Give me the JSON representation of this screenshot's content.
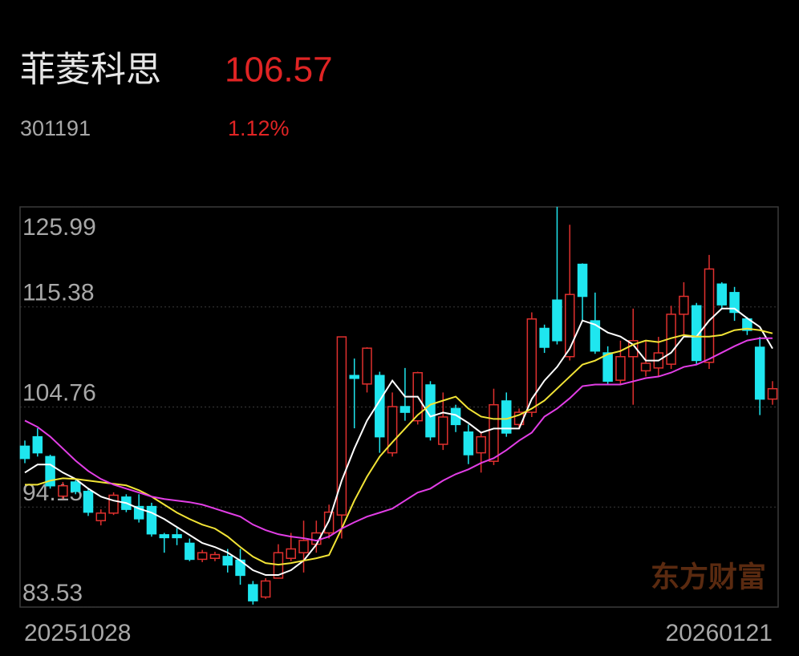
{
  "quote": {
    "name": "菲菱科思",
    "price": 106.57,
    "code": "301191",
    "change": "1.12%"
  },
  "chart_data": {
    "type": "candlestick",
    "watermark": "东方财富",
    "categories": [
      "20251028",
      null,
      null,
      null,
      null,
      null,
      null,
      null,
      null,
      null,
      null,
      null,
      null,
      null,
      null,
      null,
      null,
      null,
      null,
      null,
      null,
      null,
      null,
      null,
      null,
      null,
      null,
      null,
      null,
      null,
      null,
      null,
      null,
      null,
      null,
      null,
      null,
      null,
      null,
      null,
      null,
      null,
      null,
      null,
      null,
      null,
      null,
      null,
      null,
      null,
      null,
      null,
      null,
      null,
      null,
      null,
      null,
      null,
      null,
      "20260121"
    ],
    "open": [
      100.6,
      101.6,
      99.5,
      95.3,
      96.8,
      95.8,
      92.7,
      93.5,
      95.2,
      94.2,
      94.2,
      91.2,
      91.2,
      90.3,
      88.6,
      88.7,
      88.9,
      88.5,
      85.9,
      84.6,
      86.6,
      88.7,
      89.3,
      90.2,
      91.4,
      93.3,
      108.1,
      107.2,
      108.1,
      99.9,
      104.8,
      103.3,
      107.1,
      100.8,
      104.6,
      102.1,
      99.9,
      99.0,
      105.4,
      102.9,
      104.2,
      113.1,
      116.1,
      110.1,
      119.9,
      113.9,
      110.5,
      107.6,
      110.1,
      108.6,
      108.9,
      109.3,
      114.6,
      115.5,
      109.5,
      117.8,
      116.9,
      114.1,
      111.1,
      105.6
    ],
    "high": [
      101.2,
      102.5,
      99.7,
      96.8,
      97.0,
      96.1,
      93.9,
      95.7,
      95.5,
      95.5,
      94.6,
      91.4,
      91.9,
      90.8,
      89.6,
      89.4,
      89.7,
      89.7,
      86.3,
      86.6,
      90.2,
      91.4,
      92.7,
      92.7,
      94.4,
      112.2,
      109.9,
      111.1,
      108.5,
      106.3,
      108.9,
      108.5,
      107.5,
      106.3,
      105.0,
      102.9,
      102.0,
      106.7,
      106.3,
      104.6,
      114.8,
      113.5,
      126.0,
      124.1,
      120.0,
      116.9,
      111.2,
      111.8,
      115.2,
      111.8,
      112.2,
      115.5,
      118.0,
      115.8,
      120.9,
      118.0,
      117.5,
      114.3,
      112.2,
      107.5
    ],
    "low": [
      98.8,
      99.5,
      96.1,
      95.0,
      95.5,
      93.2,
      92.2,
      93.3,
      93.6,
      92.5,
      91.0,
      89.3,
      90.1,
      88.4,
      88.3,
      88.4,
      87.2,
      85.9,
      83.8,
      84.4,
      86.6,
      88.4,
      87.2,
      89.3,
      90.8,
      90.8,
      102.5,
      106.3,
      99.9,
      99.5,
      103.3,
      102.9,
      101.2,
      100.2,
      102.1,
      98.7,
      97.8,
      98.6,
      101.6,
      102.5,
      103.7,
      110.5,
      111.4,
      109.7,
      113.9,
      110.4,
      107.1,
      107.1,
      105.0,
      108.0,
      108.0,
      108.8,
      112.4,
      109.3,
      108.8,
      115.2,
      113.9,
      112.4,
      103.9,
      105.0
    ],
    "close": [
      99.3,
      99.9,
      96.4,
      96.4,
      95.8,
      93.6,
      93.5,
      95.4,
      93.9,
      92.9,
      91.3,
      90.9,
      90.9,
      88.6,
      89.3,
      89.1,
      88.0,
      86.9,
      84.2,
      86.3,
      89.3,
      89.7,
      90.6,
      91.4,
      93.6,
      112.2,
      107.8,
      111.0,
      101.6,
      104.8,
      104.2,
      108.4,
      101.6,
      103.7,
      102.9,
      99.7,
      101.6,
      105.0,
      102.0,
      104.2,
      114.1,
      111.1,
      111.8,
      116.7,
      116.5,
      110.7,
      107.5,
      110.1,
      111.8,
      109.4,
      110.5,
      114.6,
      116.5,
      109.7,
      119.4,
      115.6,
      114.8,
      112.9,
      105.6,
      106.7
    ],
    "up_color": "#e0302e",
    "down_color": "#1fe6ef",
    "lines": [
      {
        "color": "#ffffff",
        "values": [
          97.8,
          98.65,
          98.65,
          97.8,
          97.12,
          96.1,
          95.25,
          94.83,
          94.57,
          93.98,
          93.55,
          92.87,
          92.02,
          91.18,
          90.33,
          89.9,
          89.31,
          88.46,
          87.44,
          86.93,
          86.93,
          87.44,
          88.46,
          90.16,
          92.7,
          96.95,
          100.35,
          103.32,
          105.44,
          107.56,
          105.86,
          105.86,
          103.74,
          104.17,
          103.91,
          103.06,
          102.04,
          102.47,
          102.47,
          102.47,
          105.61,
          107.56,
          109.01,
          110.96,
          113.93,
          113.5,
          112.66,
          112.23,
          111.38,
          109.68,
          109.68,
          110.53,
          112.23,
          112.23,
          113.93,
          115.2,
          115.2,
          114.18,
          113.25,
          110.96
        ]
      },
      {
        "color": "#f2e436",
        "values": [
          96.52,
          96.52,
          96.95,
          97.2,
          97.12,
          96.95,
          96.78,
          96.61,
          96.44,
          95.93,
          95.25,
          94.4,
          93.55,
          92.87,
          92.28,
          91.86,
          91.01,
          89.9,
          88.88,
          88.2,
          88.03,
          88.2,
          88.46,
          88.71,
          89.05,
          91.86,
          94.83,
          97.37,
          99.5,
          101.02,
          102.47,
          103.91,
          105.01,
          105.44,
          105.86,
          104.59,
          103.74,
          103.49,
          103.49,
          103.91,
          104.59,
          105.44,
          106.71,
          107.99,
          109.26,
          109.68,
          110.36,
          110.7,
          111.38,
          111.81,
          111.64,
          112.06,
          112.4,
          112.23,
          112.23,
          112.4,
          112.91,
          113.08,
          112.91,
          112.57
        ]
      },
      {
        "color": "#e23ee6",
        "values": [
          103.32,
          102.64,
          101.62,
          100.35,
          99.07,
          97.97,
          97.12,
          96.52,
          96.1,
          95.68,
          95.25,
          95.0,
          94.83,
          94.66,
          94.4,
          93.98,
          93.55,
          93.13,
          92.28,
          91.69,
          91.26,
          91.01,
          90.84,
          90.58,
          91.01,
          91.86,
          92.53,
          93.13,
          93.55,
          93.98,
          94.83,
          95.68,
          96.1,
          96.95,
          97.63,
          98.14,
          98.82,
          99.33,
          100.18,
          101.19,
          102.04,
          103.74,
          104.59,
          105.69,
          106.97,
          107.14,
          107.14,
          107.14,
          107.48,
          107.82,
          107.99,
          108.41,
          109.01,
          109.26,
          109.85,
          110.53,
          111.21,
          111.81,
          112.06,
          112.06
        ]
      }
    ],
    "ylim": [
      83.53,
      125.99
    ],
    "yticks": [
      125.99,
      115.38,
      104.76,
      94.15,
      83.53
    ],
    "grid": true
  }
}
